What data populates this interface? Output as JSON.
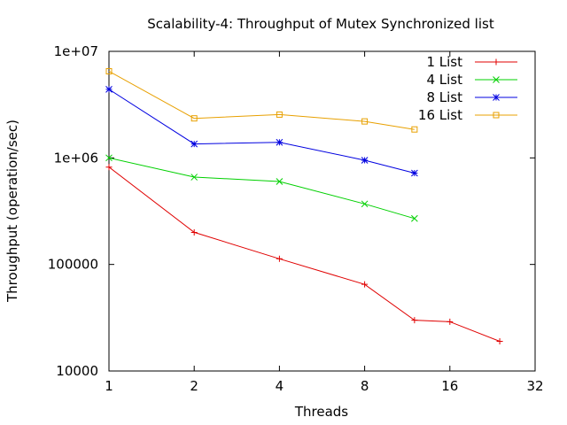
{
  "chart_data": {
    "type": "line",
    "title": "Scalability-4: Throughput of Mutex Synchronized list",
    "xlabel": "Threads",
    "ylabel": "Throughput (operation/sec)",
    "x_scale": "log2",
    "y_scale": "log10",
    "xlim": [
      1,
      32
    ],
    "ylim": [
      10000,
      10000000
    ],
    "x_ticks": [
      {
        "value": 1,
        "label": "1"
      },
      {
        "value": 2,
        "label": "2"
      },
      {
        "value": 4,
        "label": "4"
      },
      {
        "value": 8,
        "label": "8"
      },
      {
        "value": 16,
        "label": "16"
      },
      {
        "value": 32,
        "label": "32"
      }
    ],
    "y_ticks": [
      {
        "value": 10000,
        "label": "10000"
      },
      {
        "value": 100000,
        "label": "100000"
      },
      {
        "value": 1000000,
        "label": "1e+06"
      },
      {
        "value": 10000000,
        "label": "1e+07"
      }
    ],
    "grid": false,
    "legend_position": "top-right",
    "series": [
      {
        "name": "1 List",
        "color": "#e00000",
        "marker": "plus",
        "points": [
          [
            1,
            820000
          ],
          [
            2,
            200000
          ],
          [
            4,
            113000
          ],
          [
            8,
            65000
          ],
          [
            12,
            30000
          ],
          [
            16,
            29000
          ],
          [
            24,
            19000
          ]
        ]
      },
      {
        "name": "4 List",
        "color": "#00d000",
        "marker": "cross",
        "points": [
          [
            1,
            1000000
          ],
          [
            2,
            660000
          ],
          [
            4,
            600000
          ],
          [
            8,
            370000
          ],
          [
            12,
            270000
          ]
        ]
      },
      {
        "name": "8 List",
        "color": "#0000e0",
        "marker": "star",
        "points": [
          [
            1,
            4400000
          ],
          [
            2,
            1350000
          ],
          [
            4,
            1400000
          ],
          [
            8,
            950000
          ],
          [
            12,
            720000
          ]
        ]
      },
      {
        "name": "16 List",
        "color": "#e8a000",
        "marker": "square",
        "points": [
          [
            1,
            6500000
          ],
          [
            2,
            2350000
          ],
          [
            4,
            2550000
          ],
          [
            8,
            2200000
          ],
          [
            12,
            1850000
          ]
        ]
      }
    ]
  }
}
